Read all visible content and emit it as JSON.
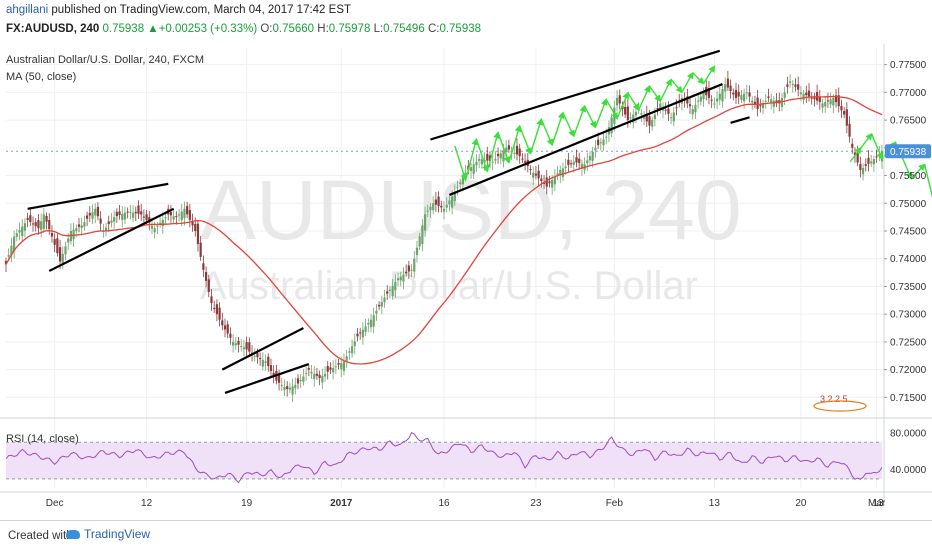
{
  "header": {
    "author": "ahgillani",
    "published_text": "published on TradingView.com, March 04, 2017 17:42 EST",
    "symbol_line": {
      "symbol": "FX:AUDUSD, 240",
      "last": "0.75938",
      "change": "+0.00253 (+0.33%)",
      "o_label": "O:",
      "o": "0.75660",
      "h_label": "H:",
      "h": "0.75978",
      "l_label": "L:",
      "l": "0.75496",
      "c_label": "C:",
      "c": "0.75938"
    },
    "series_name": "Australian Dollar/U.S. Dollar, 240, FXCM",
    "ma_label": "MA (50, close)",
    "rsi_label": "RSI (14, close)"
  },
  "watermark": {
    "line1": "AUDUSD, 240",
    "line2": "Australian Dollar/U.S. Dollar"
  },
  "footer": {
    "created_with": "Created with",
    "brand": "TradingView"
  },
  "colors": {
    "bull": "#6ba56b",
    "bear": "#8b3a3a",
    "ma": "#e0453a",
    "rsi": "#9b4fc0",
    "rsi_band": "#f0e0f8",
    "arrows": "#38e038",
    "lines": "#000000",
    "price_box": "#4a90d8"
  },
  "chart_data": [
    {
      "type": "candlestick",
      "title": "FX:AUDUSD, 240",
      "ylim": [
        0.712,
        0.778
      ],
      "y_ticks": [
        "0.77500",
        "0.77000",
        "0.76500",
        "0.76000",
        "0.75500",
        "0.75000",
        "0.74500",
        "0.74000",
        "0.73500",
        "0.73000",
        "0.72500",
        "0.72000",
        "0.71500"
      ],
      "y_tick_values": [
        0.775,
        0.77,
        0.765,
        0.76,
        0.755,
        0.75,
        0.745,
        0.74,
        0.735,
        0.73,
        0.725,
        0.72,
        0.715
      ],
      "x_ticks": [
        "Dec",
        "12",
        "19",
        "2017",
        "16",
        "23",
        "Feb",
        "13",
        "20",
        "Mar",
        "13"
      ],
      "last_price_label": "0.75938",
      "last_price": 0.75938,
      "series_anchors": [
        {
          "t": 0,
          "v": 0.739
        },
        {
          "t": 3,
          "v": 0.744
        },
        {
          "t": 8,
          "v": 0.747
        },
        {
          "t": 12,
          "v": 0.7455
        },
        {
          "t": 14,
          "v": 0.748
        },
        {
          "t": 17,
          "v": 0.744
        },
        {
          "t": 20,
          "v": 0.7395
        },
        {
          "t": 24,
          "v": 0.745
        },
        {
          "t": 28,
          "v": 0.746
        },
        {
          "t": 33,
          "v": 0.749
        },
        {
          "t": 36,
          "v": 0.745
        },
        {
          "t": 40,
          "v": 0.7475
        },
        {
          "t": 45,
          "v": 0.7485
        },
        {
          "t": 50,
          "v": 0.748
        },
        {
          "t": 55,
          "v": 0.7455
        },
        {
          "t": 60,
          "v": 0.748
        },
        {
          "t": 63,
          "v": 0.7475
        },
        {
          "t": 66,
          "v": 0.749
        },
        {
          "t": 70,
          "v": 0.745
        },
        {
          "t": 73,
          "v": 0.738
        },
        {
          "t": 76,
          "v": 0.732
        },
        {
          "t": 80,
          "v": 0.728
        },
        {
          "t": 84,
          "v": 0.725
        },
        {
          "t": 88,
          "v": 0.724
        },
        {
          "t": 92,
          "v": 0.7225
        },
        {
          "t": 96,
          "v": 0.7215
        },
        {
          "t": 100,
          "v": 0.718
        },
        {
          "t": 104,
          "v": 0.7165
        },
        {
          "t": 108,
          "v": 0.7175
        },
        {
          "t": 112,
          "v": 0.72
        },
        {
          "t": 116,
          "v": 0.7185
        },
        {
          "t": 120,
          "v": 0.72
        },
        {
          "t": 125,
          "v": 0.7215
        },
        {
          "t": 130,
          "v": 0.726
        },
        {
          "t": 135,
          "v": 0.729
        },
        {
          "t": 140,
          "v": 0.733
        },
        {
          "t": 145,
          "v": 0.7365
        },
        {
          "t": 150,
          "v": 0.738
        },
        {
          "t": 155,
          "v": 0.748
        },
        {
          "t": 158,
          "v": 0.75
        },
        {
          "t": 162,
          "v": 0.749
        },
        {
          "t": 166,
          "v": 0.752
        },
        {
          "t": 170,
          "v": 0.7555
        },
        {
          "t": 175,
          "v": 0.758
        },
        {
          "t": 180,
          "v": 0.7575
        },
        {
          "t": 185,
          "v": 0.76
        },
        {
          "t": 190,
          "v": 0.7585
        },
        {
          "t": 195,
          "v": 0.7555
        },
        {
          "t": 200,
          "v": 0.753
        },
        {
          "t": 205,
          "v": 0.756
        },
        {
          "t": 210,
          "v": 0.7575
        },
        {
          "t": 214,
          "v": 0.757
        },
        {
          "t": 218,
          "v": 0.76
        },
        {
          "t": 222,
          "v": 0.762
        },
        {
          "t": 226,
          "v": 0.769
        },
        {
          "t": 230,
          "v": 0.765
        },
        {
          "t": 234,
          "v": 0.767
        },
        {
          "t": 238,
          "v": 0.764
        },
        {
          "t": 242,
          "v": 0.768
        },
        {
          "t": 246,
          "v": 0.7655
        },
        {
          "t": 250,
          "v": 0.769
        },
        {
          "t": 254,
          "v": 0.767
        },
        {
          "t": 258,
          "v": 0.77
        },
        {
          "t": 262,
          "v": 0.768
        },
        {
          "t": 266,
          "v": 0.7715
        },
        {
          "t": 270,
          "v": 0.769
        },
        {
          "t": 274,
          "v": 0.77
        },
        {
          "t": 278,
          "v": 0.767
        },
        {
          "t": 282,
          "v": 0.769
        },
        {
          "t": 286,
          "v": 0.768
        },
        {
          "t": 290,
          "v": 0.772
        },
        {
          "t": 294,
          "v": 0.77
        },
        {
          "t": 298,
          "v": 0.769
        },
        {
          "t": 302,
          "v": 0.768
        },
        {
          "t": 306,
          "v": 0.769
        },
        {
          "t": 310,
          "v": 0.766
        },
        {
          "t": 313,
          "v": 0.76
        },
        {
          "t": 316,
          "v": 0.756
        },
        {
          "t": 320,
          "v": 0.7575
        },
        {
          "t": 324,
          "v": 0.7594
        }
      ]
    },
    {
      "type": "line",
      "title": "RSI (14, close)",
      "ylim": [
        20,
        90
      ],
      "y_ticks": [
        "80.0000",
        "40.0000"
      ],
      "y_tick_values": [
        80,
        40
      ],
      "band": [
        30,
        70
      ],
      "series_anchors": [
        {
          "t": 0,
          "v": 52
        },
        {
          "t": 6,
          "v": 60
        },
        {
          "t": 12,
          "v": 55
        },
        {
          "t": 18,
          "v": 48
        },
        {
          "t": 24,
          "v": 58
        },
        {
          "t": 30,
          "v": 52
        },
        {
          "t": 36,
          "v": 60
        },
        {
          "t": 42,
          "v": 55
        },
        {
          "t": 48,
          "v": 62
        },
        {
          "t": 54,
          "v": 52
        },
        {
          "t": 60,
          "v": 58
        },
        {
          "t": 66,
          "v": 60
        },
        {
          "t": 70,
          "v": 42
        },
        {
          "t": 74,
          "v": 34
        },
        {
          "t": 78,
          "v": 30
        },
        {
          "t": 82,
          "v": 36
        },
        {
          "t": 86,
          "v": 28
        },
        {
          "t": 90,
          "v": 38
        },
        {
          "t": 94,
          "v": 34
        },
        {
          "t": 98,
          "v": 38
        },
        {
          "t": 102,
          "v": 31
        },
        {
          "t": 106,
          "v": 42
        },
        {
          "t": 110,
          "v": 45
        },
        {
          "t": 114,
          "v": 36
        },
        {
          "t": 118,
          "v": 48
        },
        {
          "t": 122,
          "v": 44
        },
        {
          "t": 126,
          "v": 56
        },
        {
          "t": 130,
          "v": 60
        },
        {
          "t": 134,
          "v": 64
        },
        {
          "t": 138,
          "v": 62
        },
        {
          "t": 142,
          "v": 70
        },
        {
          "t": 146,
          "v": 66
        },
        {
          "t": 150,
          "v": 80
        },
        {
          "t": 152,
          "v": 74
        },
        {
          "t": 156,
          "v": 72
        },
        {
          "t": 160,
          "v": 56
        },
        {
          "t": 164,
          "v": 62
        },
        {
          "t": 168,
          "v": 70
        },
        {
          "t": 172,
          "v": 60
        },
        {
          "t": 176,
          "v": 66
        },
        {
          "t": 180,
          "v": 58
        },
        {
          "t": 184,
          "v": 54
        },
        {
          "t": 188,
          "v": 60
        },
        {
          "t": 192,
          "v": 44
        },
        {
          "t": 196,
          "v": 56
        },
        {
          "t": 200,
          "v": 50
        },
        {
          "t": 204,
          "v": 58
        },
        {
          "t": 208,
          "v": 52
        },
        {
          "t": 212,
          "v": 60
        },
        {
          "t": 216,
          "v": 55
        },
        {
          "t": 220,
          "v": 62
        },
        {
          "t": 224,
          "v": 74
        },
        {
          "t": 228,
          "v": 62
        },
        {
          "t": 232,
          "v": 56
        },
        {
          "t": 236,
          "v": 64
        },
        {
          "t": 240,
          "v": 52
        },
        {
          "t": 244,
          "v": 60
        },
        {
          "t": 248,
          "v": 54
        },
        {
          "t": 252,
          "v": 62
        },
        {
          "t": 256,
          "v": 56
        },
        {
          "t": 260,
          "v": 60
        },
        {
          "t": 264,
          "v": 52
        },
        {
          "t": 268,
          "v": 58
        },
        {
          "t": 272,
          "v": 46
        },
        {
          "t": 276,
          "v": 54
        },
        {
          "t": 280,
          "v": 48
        },
        {
          "t": 284,
          "v": 56
        },
        {
          "t": 288,
          "v": 50
        },
        {
          "t": 292,
          "v": 54
        },
        {
          "t": 296,
          "v": 48
        },
        {
          "t": 300,
          "v": 52
        },
        {
          "t": 304,
          "v": 44
        },
        {
          "t": 308,
          "v": 50
        },
        {
          "t": 312,
          "v": 40
        },
        {
          "t": 314,
          "v": 30
        },
        {
          "t": 316,
          "v": 28
        },
        {
          "t": 318,
          "v": 38
        },
        {
          "t": 320,
          "v": 34
        },
        {
          "t": 324,
          "v": 42
        }
      ]
    }
  ]
}
